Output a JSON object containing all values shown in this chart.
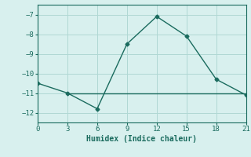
{
  "x": [
    0,
    3,
    6,
    9,
    12,
    15,
    18,
    21
  ],
  "y": [
    -10.5,
    -11.0,
    -11.8,
    -8.5,
    -7.1,
    -8.1,
    -10.3,
    -11.1
  ],
  "hline_y": -11.0,
  "hline_x_start": 3,
  "hline_x_end": 21,
  "xlim": [
    0,
    21
  ],
  "ylim": [
    -12.5,
    -6.5
  ],
  "xticks": [
    0,
    3,
    6,
    9,
    12,
    15,
    18,
    21
  ],
  "yticks": [
    -12,
    -11,
    -10,
    -9,
    -8,
    -7
  ],
  "xlabel": "Humidex (Indice chaleur)",
  "line_color": "#1a6b5e",
  "bg_color": "#d8f0ee",
  "grid_color": "#b0d8d4",
  "spine_color": "#1a6b5e",
  "label_color": "#1a6b5e",
  "tick_color": "#1a6b5e"
}
